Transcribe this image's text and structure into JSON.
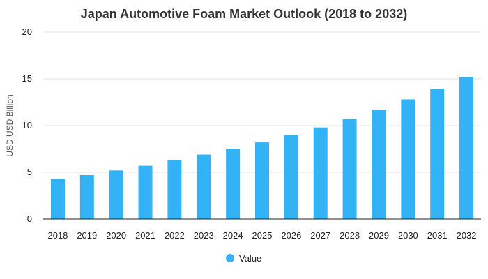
{
  "chart_data": {
    "type": "bar",
    "title": "Japan Automotive Foam Market Outlook (2018 to 2032)",
    "xlabel": "",
    "ylabel": "USD USD Billion",
    "categories": [
      "2018",
      "2019",
      "2020",
      "2021",
      "2022",
      "2023",
      "2024",
      "2025",
      "2026",
      "2027",
      "2028",
      "2029",
      "2030",
      "2031",
      "2032"
    ],
    "series": [
      {
        "name": "Value",
        "values": [
          4.3,
          4.7,
          5.2,
          5.7,
          6.3,
          6.9,
          7.5,
          8.2,
          9.0,
          9.8,
          10.7,
          11.7,
          12.8,
          13.9,
          15.2
        ]
      }
    ],
    "ylim": [
      0,
      20
    ],
    "yticks": [
      "0",
      "5",
      "10",
      "15",
      "20"
    ],
    "grid": true,
    "legend": "bottom-center",
    "colors": {
      "bar": "#33b2f5",
      "grid": "#e6e6e6",
      "axis": "#222222"
    }
  }
}
